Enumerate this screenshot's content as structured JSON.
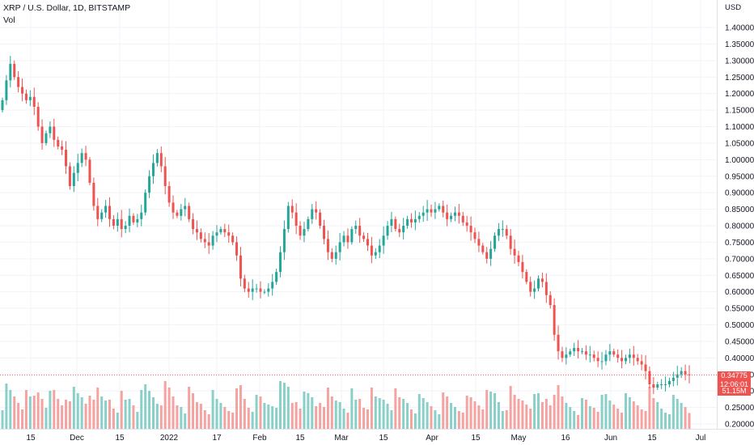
{
  "header": {
    "symbol_line": "XRP / U.S. Dollar, 1D, BITSTAMP",
    "indicator": "Vol"
  },
  "price_scale_unit": "USD",
  "last_price": {
    "value": "0.34775",
    "countdown": "12:06:01",
    "volume": "51.15M"
  },
  "colors": {
    "up": "#26a69a",
    "down": "#ef5350",
    "vol_up": "#8ad0c8",
    "vol_down": "#f5a3a1",
    "grid": "#f0f3fa",
    "last_line": "#ef5350"
  },
  "chart_data": {
    "type": "candlestick",
    "title": "XRP / U.S. Dollar, 1D, BITSTAMP",
    "currency": "USD",
    "x_ticks": [
      "15",
      "Dec",
      "15",
      "2022",
      "17",
      "Feb",
      "15",
      "Mar",
      "15",
      "Apr",
      "15",
      "May",
      "16",
      "Jun",
      "15",
      "Jul"
    ],
    "y_ticks": [
      "1.40000",
      "1.35000",
      "1.30000",
      "1.25000",
      "1.20000",
      "1.15000",
      "1.10000",
      "1.05000",
      "1.00000",
      "0.95000",
      "0.90000",
      "0.85000",
      "0.80000",
      "0.75000",
      "0.70000",
      "0.65000",
      "0.60000",
      "0.55000",
      "0.50000",
      "0.45000",
      "0.40000",
      "0.35000",
      "0.30000",
      "0.25000",
      "0.20000"
    ],
    "ylim": [
      0.2,
      1.4
    ],
    "grid": true,
    "approx_daily_closes": {
      "start": "Nov 10",
      "values": [
        1.18,
        1.24,
        1.29,
        1.25,
        1.22,
        1.2,
        1.18,
        1.19,
        1.16,
        1.1,
        1.05,
        1.08,
        1.1,
        1.06,
        1.04,
        1.03,
        0.98,
        0.92,
        0.96,
        0.99,
        1.02,
        1.0,
        0.93,
        0.86,
        0.82,
        0.84,
        0.86,
        0.82,
        0.8,
        0.82,
        0.79,
        0.8,
        0.83,
        0.81,
        0.82,
        0.84,
        0.9,
        0.95,
        0.99,
        1.02,
        0.98,
        0.92,
        0.87,
        0.84,
        0.83,
        0.85,
        0.86,
        0.82,
        0.79,
        0.78,
        0.76,
        0.75,
        0.74,
        0.77,
        0.78,
        0.79,
        0.78,
        0.77,
        0.75,
        0.71,
        0.64,
        0.61,
        0.6,
        0.61,
        0.61,
        0.6,
        0.6,
        0.61,
        0.63,
        0.66,
        0.72,
        0.79,
        0.86,
        0.84,
        0.8,
        0.77,
        0.79,
        0.82,
        0.85,
        0.84,
        0.8,
        0.76,
        0.72,
        0.7,
        0.72,
        0.75,
        0.77,
        0.75,
        0.79,
        0.8,
        0.77,
        0.76,
        0.74,
        0.71,
        0.72,
        0.74,
        0.77,
        0.8,
        0.82,
        0.79,
        0.78,
        0.8,
        0.82,
        0.81,
        0.82,
        0.83,
        0.84,
        0.85,
        0.84,
        0.85,
        0.86,
        0.84,
        0.82,
        0.83,
        0.84,
        0.83,
        0.81,
        0.8,
        0.78,
        0.76,
        0.74,
        0.72,
        0.7,
        0.73,
        0.77,
        0.79,
        0.79,
        0.77,
        0.73,
        0.71,
        0.69,
        0.66,
        0.63,
        0.6,
        0.61,
        0.64,
        0.63,
        0.59,
        0.56,
        0.47,
        0.42,
        0.4,
        0.41,
        0.42,
        0.43,
        0.42,
        0.42,
        0.41,
        0.41,
        0.4,
        0.39,
        0.39,
        0.41,
        0.42,
        0.41,
        0.4,
        0.39,
        0.4,
        0.41,
        0.4,
        0.39,
        0.38,
        0.36,
        0.32,
        0.31,
        0.32,
        0.32,
        0.32,
        0.33,
        0.34,
        0.35,
        0.36,
        0.35,
        0.348
      ]
    }
  }
}
